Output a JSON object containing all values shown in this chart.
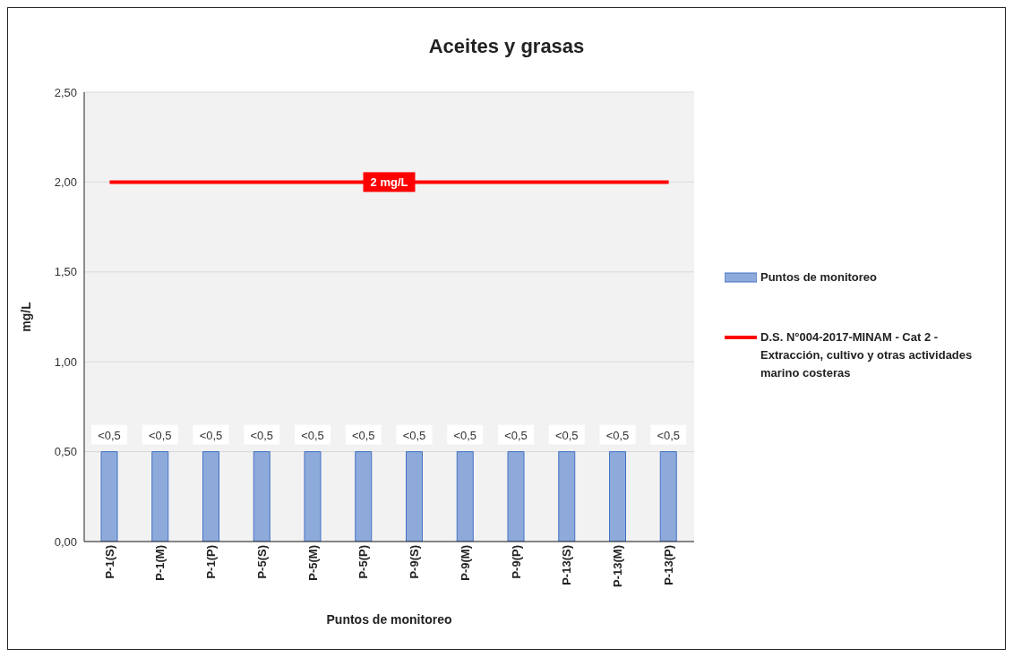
{
  "chart_data": {
    "type": "bar",
    "title": "Aceites y grasas",
    "xlabel": "Puntos de monitoreo",
    "ylabel": "mg/L",
    "categories": [
      "P-1(S)",
      "P-1(M)",
      "P-1(P)",
      "P-5(S)",
      "P-5(M)",
      "P-5(P)",
      "P-9(S)",
      "P-9(M)",
      "P-9(P)",
      "P-13(S)",
      "P-13(M)",
      "P-13(P)"
    ],
    "series": [
      {
        "name": "Puntos de monitoreo",
        "color": "#8eaadb",
        "values": [
          0.5,
          0.5,
          0.5,
          0.5,
          0.5,
          0.5,
          0.5,
          0.5,
          0.5,
          0.5,
          0.5,
          0.5
        ],
        "value_labels": [
          "<0,5",
          "<0,5",
          "<0,5",
          "<0,5",
          "<0,5",
          "<0,5",
          "<0,5",
          "<0,5",
          "<0,5",
          "<0,5",
          "<0,5",
          "<0,5"
        ]
      },
      {
        "name": "D.S. N°004-2017-MINAM - Cat 2 - Extracción, cultivo y otras actividades marino costeras",
        "type": "line",
        "color": "#ff0000",
        "values": [
          2,
          2,
          2,
          2,
          2,
          2,
          2,
          2,
          2,
          2,
          2,
          2
        ]
      }
    ],
    "annotations": [
      {
        "text": "2 mg/L",
        "y": 2
      }
    ],
    "ylim": [
      0,
      2.5
    ],
    "yticks": [
      {
        "value": 0,
        "label": "0,00"
      },
      {
        "value": 0.5,
        "label": "0,50"
      },
      {
        "value": 1,
        "label": "1,00"
      },
      {
        "value": 1.5,
        "label": "1,50"
      },
      {
        "value": 2,
        "label": "2,00"
      },
      {
        "value": 2.5,
        "label": "2,50"
      }
    ],
    "grid": "y",
    "legend": "right",
    "marker": "none"
  }
}
